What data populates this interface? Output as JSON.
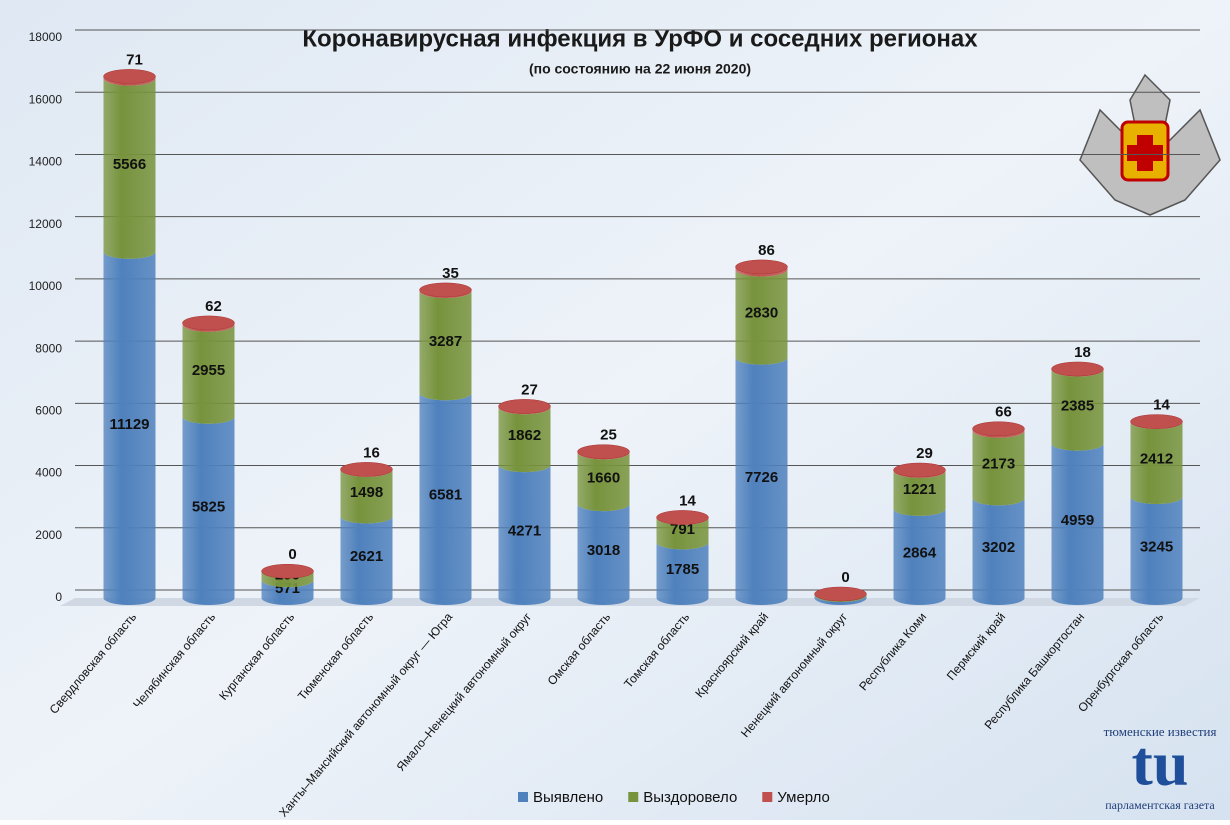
{
  "chart_data": {
    "type": "bar",
    "stacked": true,
    "title": "Коронавирусная инфекция в УрФО и соседних регионах",
    "subtitle": "(по состоянию на 22 июня 2020)",
    "categories": [
      "Свердловская область",
      "Челябинская область",
      "Курганская область",
      "Тюменская область",
      "Ханты–Мансийский  автономный округ — Югра",
      "Ямало–Ненецкий автономный округ",
      "Омская область",
      "Томская область",
      "Красноярский край",
      "Ненецкий автономный округ",
      "Республика Коми",
      "Пермский край",
      "Республика Башкортостан",
      "Оренбургская область"
    ],
    "series": [
      {
        "name": "Выявлено",
        "color": "#4f81bd",
        "values": [
          11129,
          5825,
          571,
          2621,
          6581,
          4271,
          3018,
          1785,
          7726,
          95,
          2864,
          3202,
          4959,
          3245
        ]
      },
      {
        "name": "Выздоровело",
        "color": "#77933c",
        "values": [
          5566,
          2955,
          290,
          1498,
          3287,
          1862,
          1660,
          791,
          2830,
          33,
          1221,
          2173,
          2385,
          2412
        ]
      },
      {
        "name": "Умерло",
        "color": "#c0504d",
        "values": [
          71,
          62,
          0,
          16,
          35,
          27,
          25,
          14,
          86,
          0,
          29,
          66,
          18,
          14
        ]
      }
    ],
    "ylim": [
      0,
      18000
    ],
    "yticks": [
      0,
      2000,
      4000,
      6000,
      8000,
      10000,
      12000,
      14000,
      16000,
      18000
    ],
    "grid": true,
    "legend": "bottom",
    "logo": {
      "top": "тюменские известия",
      "mark": "tu",
      "bottom": "парламентская газета"
    }
  }
}
